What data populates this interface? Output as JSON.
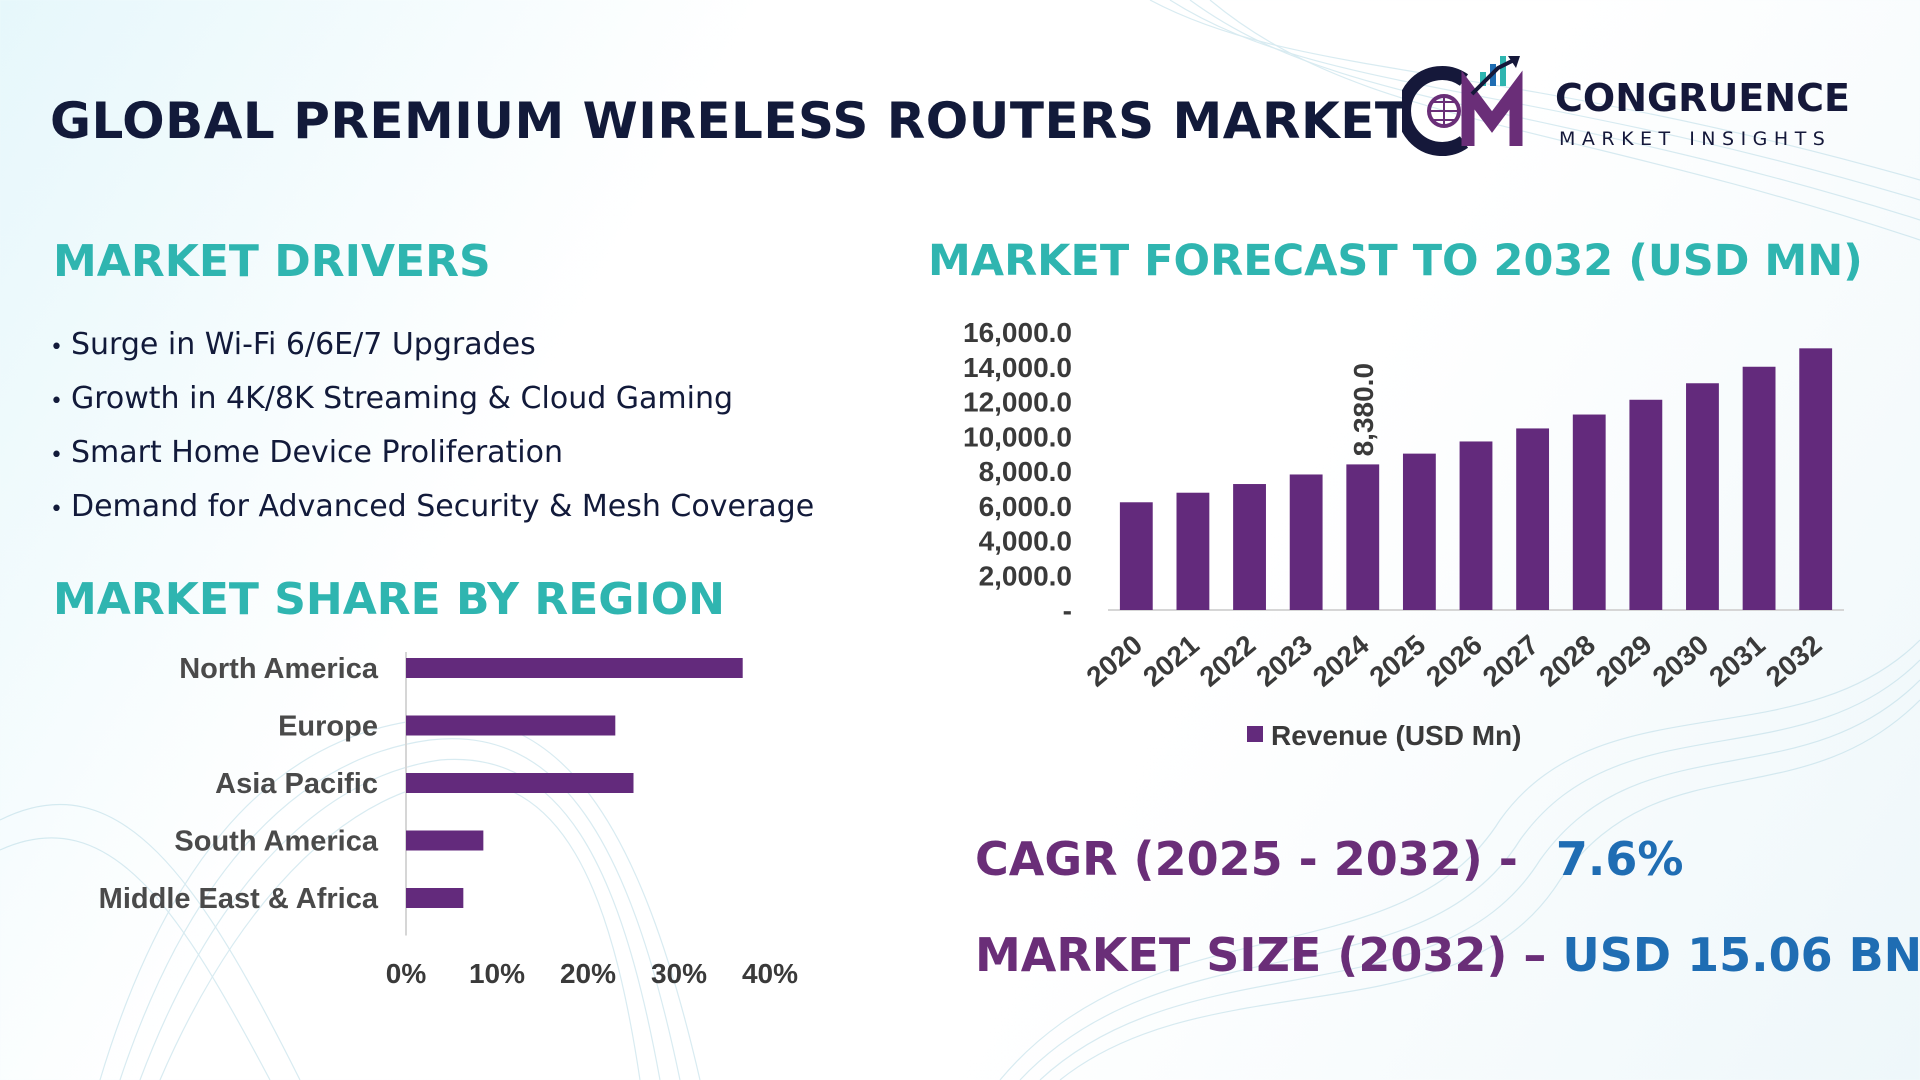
{
  "title": "GLOBAL PREMIUM WIRELESS ROUTERS MARKET",
  "logo": {
    "name": "CONGRUENCE",
    "tagline": "MARKET INSIGHTS"
  },
  "colors": {
    "bar": "#632a7c",
    "heading": "#2fb5b0",
    "title": "#121a3a",
    "stat_label": "#6a2e78",
    "stat_value": "#1f6db3"
  },
  "drivers": {
    "heading": "MARKET DRIVERS",
    "items": [
      "Surge in Wi-Fi 6/6E/7 Upgrades",
      "Growth in 4K/8K Streaming & Cloud Gaming",
      "Smart Home Device Proliferation",
      "Demand for Advanced Security & Mesh Coverage"
    ]
  },
  "forecast_heading": "MARKET FORECAST TO 2032 (USD MN)",
  "region_heading": "MARKET SHARE BY REGION",
  "stats": {
    "cagr_label": "CAGR (2025 - 2032) -",
    "cagr_value": "7.6%",
    "size_label": "MARKET SIZE (2032) –",
    "size_value": "USD 15.06 BN"
  },
  "chart_data": [
    {
      "type": "bar",
      "orientation": "vertical",
      "title": "MARKET FORECAST TO 2032 (USD MN)",
      "categories": [
        "2020",
        "2021",
        "2022",
        "2023",
        "2024",
        "2025",
        "2026",
        "2027",
        "2028",
        "2029",
        "2030",
        "2031",
        "2032"
      ],
      "series": [
        {
          "name": "Revenue (USD Mn)",
          "values": [
            6200,
            6750,
            7250,
            7800,
            8380,
            9000,
            9700,
            10450,
            11250,
            12100,
            13050,
            14000,
            15060
          ]
        }
      ],
      "data_labels": [
        {
          "category": "2024",
          "text": "8,380.0"
        }
      ],
      "yticks": [
        "-",
        "2,000.0",
        "4,000.0",
        "6,000.0",
        "8,000.0",
        "10,000.0",
        "12,000.0",
        "14,000.0",
        "16,000.0"
      ],
      "ylim": [
        0,
        16000
      ],
      "grid": false,
      "legend": "bottom"
    },
    {
      "type": "bar",
      "orientation": "horizontal",
      "title": "MARKET SHARE BY REGION",
      "categories": [
        "North America",
        "Europe",
        "Asia Pacific",
        "South America",
        "Middle East & Africa"
      ],
      "values": [
        37,
        23,
        25,
        8.5,
        6.3
      ],
      "xticks": [
        "0%",
        "10%",
        "20%",
        "30%",
        "40%"
      ],
      "xlim": [
        0,
        40
      ],
      "grid": false,
      "legend": "none"
    }
  ]
}
